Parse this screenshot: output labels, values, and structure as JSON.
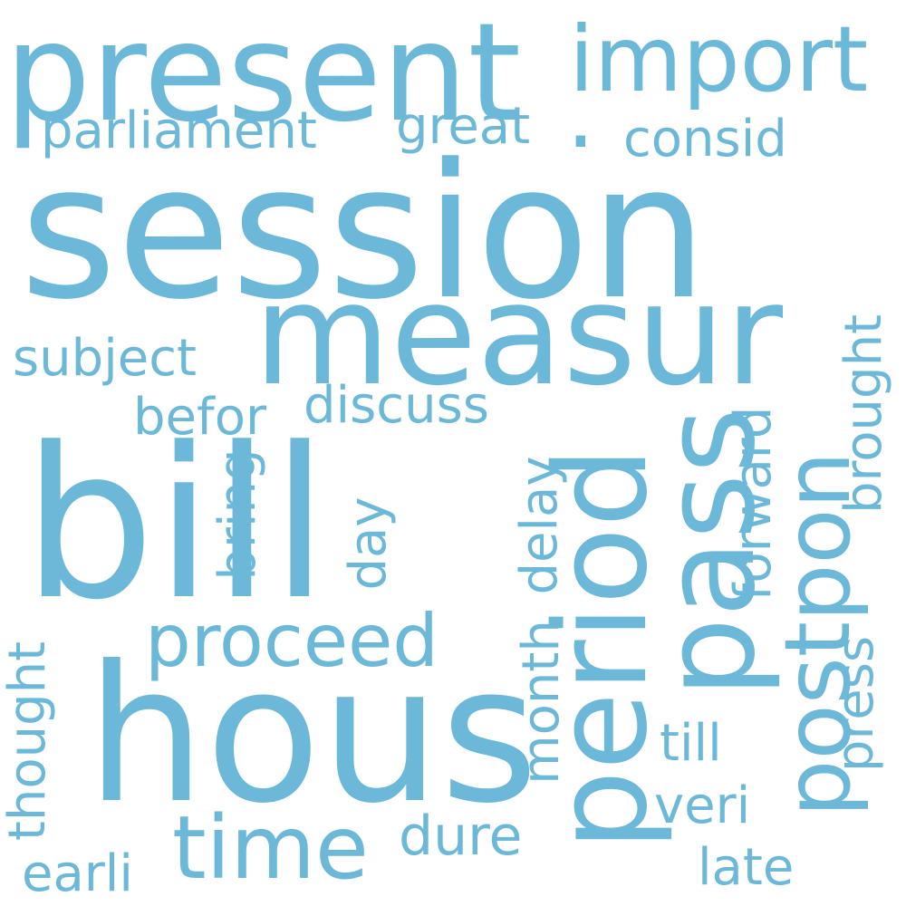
{
  "word_color": "#6cb8d8",
  "background_color": "#ffffff",
  "words": {
    "session": "session",
    "bill": "bill",
    "measur": "measur",
    "hous": "hous",
    "present": "present",
    "period": "period",
    "pass": "pass",
    "postpon": "postpon",
    "import": "import",
    "time": "time",
    "proceed": "proceed",
    "discuss": "discuss",
    "subject": "subject",
    "parliament": "parliament",
    "great": "great",
    "consid": "consid",
    "befor": "befor",
    "brought": "brought",
    "forward": "forward",
    "bring": "bring",
    "day": "day",
    "delay": "delay",
    "month": "month",
    "thought": "thought",
    "press": "press",
    "till": "till",
    "veri": "veri",
    "late": "late",
    "dure": "dure",
    "earli": "earli",
    "dot": "."
  }
}
